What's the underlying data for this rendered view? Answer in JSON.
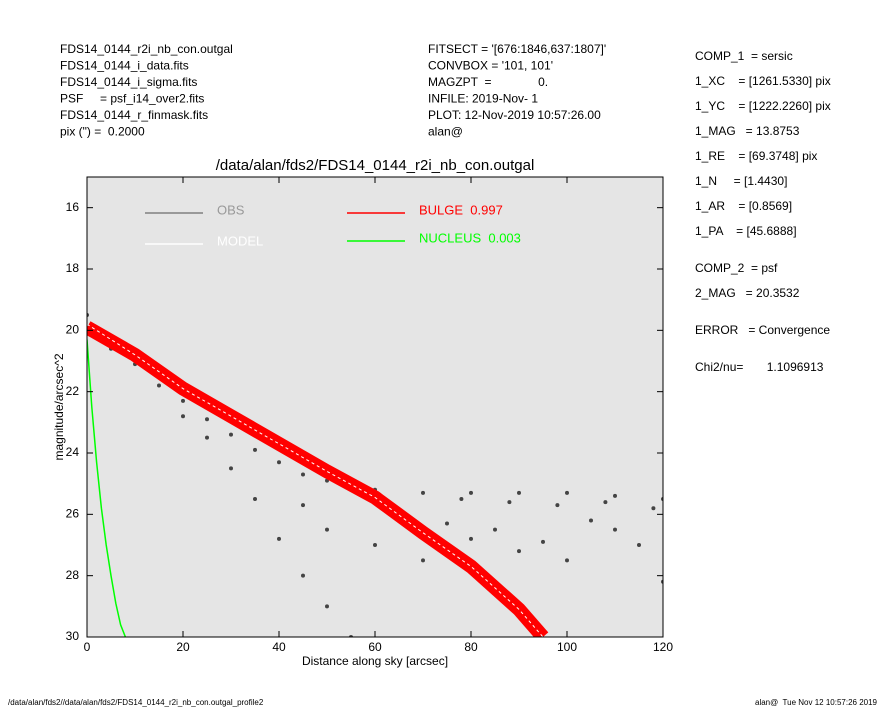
{
  "header": {
    "left": [
      "FDS14_0144_r2i_nb_con.outgal",
      "FDS14_0144_i_data.fits",
      "FDS14_0144_i_sigma.fits",
      "PSF     = psf_i14_over2.fits",
      "FDS14_0144_r_finmask.fits",
      "pix (\") =  0.2000"
    ],
    "middle": [
      "FITSECT = '[676:1846,637:1807]'",
      "CONVBOX = '101, 101'",
      "MAGZPT  =              0.",
      "INFILE: 2019-Nov- 1",
      "PLOT: 12-Nov-2019 10:57:26.00",
      "alan@"
    ],
    "right": [
      [
        "COMP_1  = sersic",
        "1_XC    = [1261.5330] pix",
        "1_YC    = [1222.2260] pix",
        "1_MAG   = 13.8753",
        "1_RE    = [69.3748] pix",
        "1_N     = [1.4430]",
        "1_AR    = [0.8569]",
        "1_PA    = [45.6888]"
      ],
      [
        "COMP_2  = psf",
        "2_MAG   = 20.3532"
      ],
      [
        "ERROR   = Convergence"
      ],
      [
        "Chi2/nu=       1.1096913"
      ]
    ]
  },
  "footer": {
    "left": "/data/alan/fds2//data/alan/fds2/FDS14_0144_r2i_nb_con.outgal_profile2",
    "right": "alan@  Tue Nov 12 10:57:26 2019"
  },
  "chart_data": {
    "type": "line",
    "title": "/data/alan/fds2/FDS14_0144_r2i_nb_con.outgal",
    "x_label": "Distance along sky [arcsec]",
    "y_label": "magnitude/arcsec^2",
    "xlim": [
      0,
      120
    ],
    "xticks": [
      0,
      20,
      40,
      60,
      80,
      100,
      120
    ],
    "ylim": [
      30,
      15
    ],
    "yticks": [
      16,
      18,
      20,
      22,
      24,
      26,
      28,
      30
    ],
    "background": "#e5e5e5",
    "series": [
      {
        "name": "OBS",
        "color": "#808080",
        "markers": true,
        "x": [
          0,
          2,
          5,
          10,
          15,
          20,
          25,
          30,
          35,
          40,
          45,
          50,
          55,
          60,
          70,
          80,
          90,
          100,
          110,
          120,
          20,
          25,
          30,
          35,
          40,
          45,
          50,
          55,
          45,
          50,
          60,
          65,
          70,
          75,
          80,
          85,
          90,
          95,
          100,
          105,
          110,
          115,
          120,
          62,
          78,
          88,
          98,
          108,
          118
        ],
        "values": [
          19.5,
          20.2,
          20.6,
          21.1,
          21.8,
          22.3,
          22.9,
          23.4,
          23.9,
          24.3,
          24.7,
          24.9,
          25.1,
          25.2,
          25.3,
          25.3,
          25.3,
          25.3,
          25.4,
          25.5,
          22.8,
          23.5,
          24.5,
          25.5,
          26.8,
          28.0,
          29.0,
          30.0,
          25.7,
          26.5,
          27.0,
          26.0,
          27.5,
          26.3,
          26.8,
          26.5,
          27.2,
          26.9,
          27.5,
          26.2,
          26.5,
          27.0,
          28.2,
          25.6,
          25.5,
          25.6,
          25.7,
          25.6,
          25.8
        ]
      },
      {
        "name": "BULGE  0.997",
        "color": "#ff0000",
        "x": [
          0,
          10,
          20,
          30,
          40,
          50,
          60,
          70,
          80,
          90,
          95
        ],
        "values": [
          19.9,
          20.8,
          21.9,
          22.8,
          23.7,
          24.6,
          25.45,
          26.6,
          27.7,
          29.1,
          30.0
        ]
      },
      {
        "name": "MODEL",
        "color": "#ffffff",
        "x": [
          0,
          10,
          20,
          30,
          40,
          50,
          60,
          70,
          80,
          90,
          95
        ],
        "values": [
          19.8,
          20.8,
          21.9,
          22.8,
          23.7,
          24.6,
          25.45,
          26.6,
          27.7,
          29.1,
          30.0
        ]
      },
      {
        "name": "NUCLEUS  0.003",
        "color": "#00ff00",
        "x": [
          0,
          1,
          2,
          3,
          4,
          5,
          6,
          7,
          8
        ],
        "values": [
          20.3,
          22.5,
          24.3,
          25.8,
          27.0,
          28.0,
          28.9,
          29.6,
          30.0
        ]
      }
    ]
  }
}
